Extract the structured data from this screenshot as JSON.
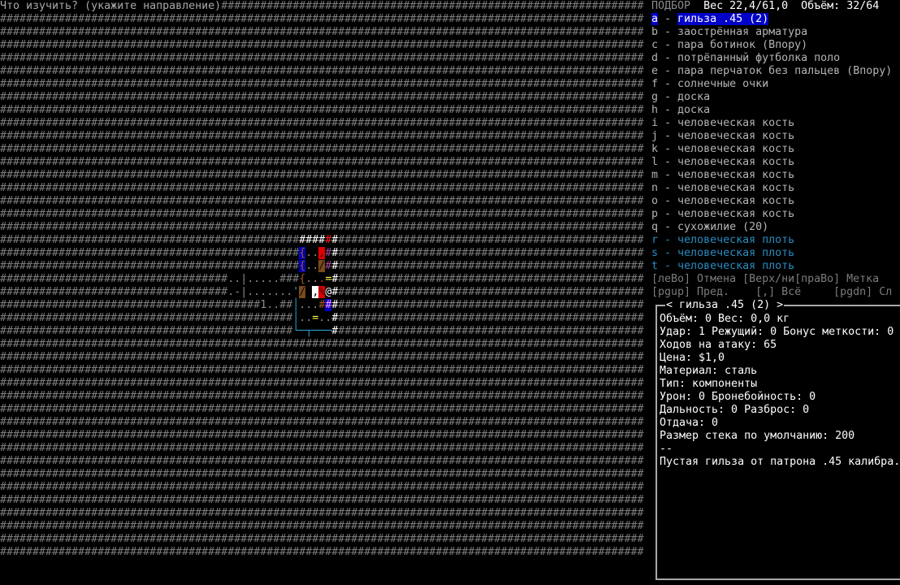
{
  "styles": {
    "wall": {
      "fg": "#7c7c7c"
    },
    "floor": {
      "fg": "#8a8a8a"
    },
    "prompt": {
      "fg": "#a8a8a8"
    },
    "white": {
      "fg": "#ffffff"
    },
    "red": {
      "fg": "#ff2020"
    },
    "redfloor": {
      "fg": "#d03030"
    },
    "purple": {
      "fg": "#a04a90"
    },
    "brown": {
      "fg": "#a0561e"
    },
    "brown_on_blue": {
      "fg": "#a0561e",
      "bg": "#0000c0"
    },
    "black_on_red": {
      "fg": "#400000",
      "bg": "#e00000"
    },
    "black_on_brown": {
      "fg": "#1a0a00",
      "bg": "#7a4a1e"
    },
    "black_on_white": {
      "fg": "#000000",
      "bg": "#ffffff"
    },
    "pink_on_blue": {
      "fg": "#ff90ff",
      "bg": "#0000c0"
    },
    "yellow": {
      "fg": "#ffff40"
    },
    "cyan": {
      "fg": "#2a9cc4"
    },
    "blank": {
      "fg": "#000000"
    }
  },
  "map": {
    "rows": [
      [
        [
          "Что изучить? (укажите направление)",
          1,
          "prompt"
        ],
        [
          "#",
          65,
          "wall"
        ]
      ],
      [
        [
          "#",
          99,
          "wall"
        ]
      ],
      [
        [
          "#",
          99,
          "wall"
        ]
      ],
      [
        [
          "#",
          99,
          "wall"
        ]
      ],
      [
        [
          "#",
          99,
          "wall"
        ]
      ],
      [
        [
          "#",
          99,
          "wall"
        ]
      ],
      [
        [
          "#",
          99,
          "wall"
        ]
      ],
      [
        [
          "#",
          99,
          "wall"
        ]
      ],
      [
        [
          "#",
          99,
          "wall"
        ]
      ],
      [
        [
          "#",
          99,
          "wall"
        ]
      ],
      [
        [
          "#",
          99,
          "wall"
        ]
      ],
      [
        [
          "#",
          99,
          "wall"
        ]
      ],
      [
        [
          "#",
          99,
          "wall"
        ]
      ],
      [
        [
          "#",
          99,
          "wall"
        ]
      ],
      [
        [
          "#",
          99,
          "wall"
        ]
      ],
      [
        [
          "#",
          99,
          "wall"
        ]
      ],
      [
        [
          "#",
          99,
          "wall"
        ]
      ],
      [
        [
          "#",
          99,
          "wall"
        ]
      ],
      [
        [
          "#",
          46,
          "wall"
        ],
        [
          "#",
          4,
          "white"
        ],
        [
          "#",
          1,
          "red"
        ],
        [
          "#",
          1,
          "white"
        ],
        [
          "#",
          47,
          "wall"
        ]
      ],
      [
        [
          "#",
          46,
          "wall"
        ],
        [
          "{",
          1,
          "brown_on_blue"
        ],
        [
          ".",
          2,
          "floor"
        ],
        [
          ",",
          1,
          "black_on_red"
        ],
        [
          "#",
          1,
          "purple"
        ],
        [
          "#",
          1,
          "white"
        ],
        [
          "#",
          47,
          "wall"
        ]
      ],
      [
        [
          "#",
          46,
          "wall"
        ],
        [
          "{",
          1,
          "brown_on_blue"
        ],
        [
          ".",
          2,
          "floor"
        ],
        [
          "/",
          1,
          "black_on_brown"
        ],
        [
          "#",
          1,
          "purple"
        ],
        [
          "#",
          1,
          "white"
        ],
        [
          "#",
          47,
          "wall"
        ]
      ],
      [
        [
          "#",
          35,
          "wall"
        ],
        [
          "..|.....",
          1,
          "floor"
        ],
        [
          "#",
          3,
          "wall"
        ],
        [
          "{",
          1,
          "brown"
        ],
        [
          ".",
          2,
          "floor"
        ],
        [
          ".",
          1,
          "redfloor"
        ],
        [
          "=",
          1,
          "yellow"
        ],
        [
          "#",
          1,
          "white"
        ],
        [
          "#",
          47,
          "wall"
        ]
      ],
      [
        [
          "#",
          35,
          "wall"
        ],
        [
          ".-|.......",
          1,
          "floor"
        ],
        [
          "'",
          1,
          "cyan"
        ],
        [
          "/",
          1,
          "black_on_brown"
        ],
        [
          " ",
          1,
          "blank"
        ],
        [
          ",",
          1,
          "black_on_white"
        ],
        [
          "%",
          1,
          "black_on_red"
        ],
        [
          "@",
          1,
          "white"
        ],
        [
          "#",
          1,
          "white"
        ],
        [
          "#",
          47,
          "wall"
        ]
      ],
      [
        [
          "#",
          40,
          "wall"
        ],
        [
          "1..",
          1,
          "floor"
        ],
        [
          "#",
          2,
          "wall"
        ],
        [
          "│",
          1,
          "cyan"
        ],
        [
          ".",
          3,
          "floor"
        ],
        [
          "#",
          1,
          "brown"
        ],
        [
          "#",
          1,
          "pink_on_blue"
        ],
        [
          "#",
          1,
          "white"
        ],
        [
          "#",
          47,
          "wall"
        ]
      ],
      [
        [
          "#",
          45,
          "wall"
        ],
        [
          "│",
          1,
          "cyan"
        ],
        [
          ".",
          2,
          "floor"
        ],
        [
          "=",
          1,
          "yellow"
        ],
        [
          ".",
          2,
          "floor"
        ],
        [
          "#",
          1,
          "white"
        ],
        [
          "#",
          47,
          "wall"
        ]
      ],
      [
        [
          "#",
          45,
          "wall"
        ],
        [
          "└─┬───",
          1,
          "cyan"
        ],
        [
          "#",
          1,
          "white"
        ],
        [
          "#",
          47,
          "wall"
        ]
      ],
      [
        [
          "#",
          99,
          "wall"
        ]
      ],
      [
        [
          "#",
          99,
          "wall"
        ]
      ],
      [
        [
          "#",
          99,
          "wall"
        ]
      ],
      [
        [
          "#",
          99,
          "wall"
        ]
      ],
      [
        [
          "#",
          99,
          "wall"
        ]
      ],
      [
        [
          "#",
          99,
          "wall"
        ]
      ],
      [
        [
          "#",
          99,
          "wall"
        ]
      ],
      [
        [
          "#",
          99,
          "wall"
        ]
      ],
      [
        [
          "#",
          99,
          "wall"
        ]
      ],
      [
        [
          "#",
          99,
          "wall"
        ]
      ],
      [
        [
          "#",
          99,
          "wall"
        ]
      ],
      [
        [
          "#",
          99,
          "wall"
        ]
      ],
      [
        [
          "#",
          99,
          "wall"
        ]
      ],
      [
        [
          "#",
          99,
          "wall"
        ]
      ],
      [
        [
          "#",
          99,
          "wall"
        ]
      ],
      [
        [
          "#",
          99,
          "wall"
        ]
      ],
      [
        [
          "#",
          99,
          "wall"
        ]
      ]
    ]
  },
  "panel": {
    "mode": "ПОДБОР",
    "weight": "Вес 22,4/61,0",
    "volume": "Объём: 32/64",
    "colors": {
      "normal": "#b4b4b4",
      "flesh": "#2a8cc0",
      "selected_bg": "#0000c8",
      "hint": "#7c7c7c",
      "header": "#8a8a8a"
    },
    "items": [
      {
        "key": "a",
        "label": "гильза .45 (2)",
        "selected": true
      },
      {
        "key": "b",
        "label": "заострённая арматура"
      },
      {
        "key": "c",
        "label": "пара ботинок (Впору)"
      },
      {
        "key": "d",
        "label": "потрёпанный футболка поло"
      },
      {
        "key": "e",
        "label": "пара перчаток без пальцев (Впору)"
      },
      {
        "key": "f",
        "label": "солнечные очки"
      },
      {
        "key": "g",
        "label": "доска"
      },
      {
        "key": "h",
        "label": "доска"
      },
      {
        "key": "i",
        "label": "человеческая кость"
      },
      {
        "key": "j",
        "label": "человеческая кость"
      },
      {
        "key": "k",
        "label": "человеческая кость"
      },
      {
        "key": "l",
        "label": "человеческая кость"
      },
      {
        "key": "m",
        "label": "человеческая кость"
      },
      {
        "key": "n",
        "label": "человеческая кость"
      },
      {
        "key": "o",
        "label": "человеческая кость"
      },
      {
        "key": "p",
        "label": "человеческая кость"
      },
      {
        "key": "q",
        "label": "сухожилие (20)"
      },
      {
        "key": "r",
        "label": "человеческая плоть",
        "flesh": true
      },
      {
        "key": "s",
        "label": "человеческая плоть",
        "flesh": true
      },
      {
        "key": "t",
        "label": "человеческая плоть",
        "flesh": true
      }
    ],
    "hint1": "[леВо] Отмена [Верх/ни[праВо] Метка",
    "hint2": "[pgup] Пред.    [,] Всё     [pgdn] Сл",
    "info": {
      "title": "< гильза .45 (2) >",
      "lines": [
        "Объём: 0 Вес: 0,0 кг",
        "Удар: 1 Режущий: 0 Бонус меткости: 0",
        "Ходов на атаку: 65",
        "Цена: $1,0",
        "Материал: сталь",
        "Тип: компоненты",
        "Урон: 0 Бронебойность: 0",
        "Дальность: 0 Разброс: 0",
        "Отдача: 0",
        "Размер стека по умолчанию: 200",
        "--",
        "Пустая гильза от патрона .45 калибра."
      ]
    }
  }
}
